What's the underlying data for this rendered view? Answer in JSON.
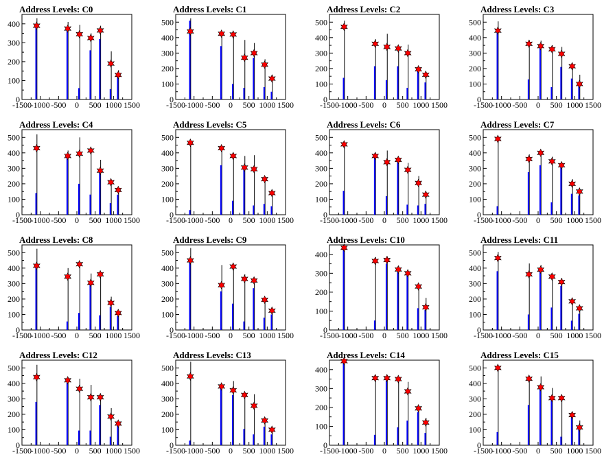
{
  "chart_data": [
    {
      "type": "histogram",
      "title": "Address Levels: C0",
      "xlim": [
        -1500,
        1500
      ],
      "ylim": [
        0,
        450
      ],
      "yticks": [
        0,
        100,
        200,
        300,
        400
      ],
      "xticks": [
        -1500,
        -1000,
        -500,
        0,
        500,
        1000,
        1500
      ],
      "peak_x": [
        -1100,
        -250,
        70,
        380,
        640,
        930,
        1130
      ],
      "peak_y": [
        390,
        375,
        345,
        325,
        365,
        190,
        130
      ],
      "bar_black": [
        430,
        410,
        395,
        350,
        390,
        255,
        155
      ],
      "bar_blue": [
        400,
        370,
        60,
        260,
        320,
        55,
        125
      ]
    },
    {
      "type": "histogram",
      "title": "Address Levels: C1",
      "xlim": [
        -1500,
        1500
      ],
      "ylim": [
        0,
        550
      ],
      "yticks": [
        0,
        100,
        200,
        300,
        400,
        500
      ],
      "xticks": [
        -1500,
        -1000,
        -500,
        0,
        500,
        1000,
        1500
      ],
      "peak_x": [
        -1100,
        -250,
        70,
        380,
        640,
        930,
        1130
      ],
      "peak_y": [
        440,
        425,
        420,
        270,
        300,
        225,
        135
      ],
      "bar_black": [
        525,
        440,
        430,
        385,
        365,
        260,
        160
      ],
      "bar_blue": [
        510,
        345,
        100,
        75,
        270,
        80,
        50
      ]
    },
    {
      "type": "histogram",
      "title": "Address Levels: C2",
      "xlim": [
        -1500,
        1500
      ],
      "ylim": [
        0,
        550
      ],
      "yticks": [
        0,
        100,
        200,
        300,
        400,
        500
      ],
      "xticks": [
        -1500,
        -1000,
        -500,
        0,
        500,
        1000,
        1500
      ],
      "peak_x": [
        -1100,
        -250,
        70,
        380,
        640,
        930,
        1130
      ],
      "peak_y": [
        470,
        360,
        340,
        330,
        300,
        195,
        160
      ],
      "bar_black": [
        510,
        390,
        425,
        345,
        355,
        210,
        175
      ],
      "bar_blue": [
        140,
        215,
        125,
        215,
        75,
        190,
        110
      ]
    },
    {
      "type": "histogram",
      "title": "Address Levels: C3",
      "xlim": [
        -1500,
        1500
      ],
      "ylim": [
        0,
        550
      ],
      "yticks": [
        0,
        100,
        200,
        300,
        400,
        500
      ],
      "xticks": [
        -1500,
        -1000,
        -500,
        0,
        500,
        1000,
        1500
      ],
      "peak_x": [
        -1100,
        -250,
        70,
        380,
        640,
        930,
        1130
      ],
      "peak_y": [
        445,
        360,
        345,
        325,
        295,
        215,
        100
      ],
      "bar_black": [
        505,
        385,
        380,
        350,
        340,
        225,
        160
      ],
      "bar_blue": [
        440,
        130,
        345,
        80,
        210,
        135,
        95
      ]
    },
    {
      "type": "histogram",
      "title": "Address Levels: C4",
      "xlim": [
        -1500,
        1500
      ],
      "ylim": [
        0,
        550
      ],
      "yticks": [
        0,
        100,
        200,
        300,
        400,
        500
      ],
      "xticks": [
        -1500,
        -1000,
        -500,
        0,
        500,
        1000,
        1500
      ],
      "peak_x": [
        -1100,
        -250,
        70,
        380,
        640,
        930,
        1130
      ],
      "peak_y": [
        430,
        380,
        395,
        415,
        285,
        210,
        160
      ],
      "bar_black": [
        520,
        415,
        500,
        425,
        355,
        215,
        170
      ],
      "bar_blue": [
        140,
        370,
        200,
        130,
        290,
        75,
        130
      ]
    },
    {
      "type": "histogram",
      "title": "Address Levels: C5",
      "xlim": [
        -1500,
        1500
      ],
      "ylim": [
        0,
        550
      ],
      "yticks": [
        0,
        100,
        200,
        300,
        400,
        500
      ],
      "xticks": [
        -1500,
        -1000,
        -500,
        0,
        500,
        1000,
        1500
      ],
      "peak_x": [
        -1100,
        -250,
        70,
        380,
        640,
        930,
        1130
      ],
      "peak_y": [
        465,
        430,
        380,
        305,
        295,
        230,
        140
      ],
      "bar_black": [
        470,
        440,
        395,
        380,
        385,
        245,
        155
      ],
      "bar_blue": [
        30,
        320,
        90,
        310,
        60,
        70,
        55
      ]
    },
    {
      "type": "histogram",
      "title": "Address Levels: C6",
      "xlim": [
        -1500,
        1500
      ],
      "ylim": [
        0,
        550
      ],
      "yticks": [
        0,
        100,
        200,
        300,
        400,
        500
      ],
      "xticks": [
        -1500,
        -1000,
        -500,
        0,
        500,
        1000,
        1500
      ],
      "peak_x": [
        -1100,
        -250,
        70,
        380,
        640,
        930,
        1130
      ],
      "peak_y": [
        455,
        380,
        340,
        355,
        290,
        205,
        130
      ],
      "bar_black": [
        470,
        400,
        415,
        375,
        335,
        250,
        145
      ],
      "bar_blue": [
        155,
        370,
        120,
        340,
        65,
        60,
        70
      ]
    },
    {
      "type": "histogram",
      "title": "Address Levels: C7",
      "xlim": [
        -1500,
        1500
      ],
      "ylim": [
        0,
        550
      ],
      "yticks": [
        0,
        100,
        200,
        300,
        400,
        500
      ],
      "xticks": [
        -1500,
        -1000,
        -500,
        0,
        500,
        1000,
        1500
      ],
      "peak_x": [
        -1100,
        -250,
        70,
        380,
        640,
        930,
        1130
      ],
      "peak_y": [
        490,
        360,
        400,
        345,
        320,
        200,
        150
      ],
      "bar_black": [
        500,
        390,
        420,
        375,
        325,
        230,
        165
      ],
      "bar_blue": [
        55,
        275,
        320,
        80,
        310,
        135,
        125
      ]
    },
    {
      "type": "histogram",
      "title": "Address Levels: C8",
      "xlim": [
        -1500,
        1500
      ],
      "ylim": [
        0,
        550
      ],
      "yticks": [
        0,
        100,
        200,
        300,
        400,
        500
      ],
      "xticks": [
        -1500,
        -1000,
        -500,
        0,
        500,
        1000,
        1500
      ],
      "peak_x": [
        -1100,
        -250,
        70,
        380,
        640,
        930,
        1130
      ],
      "peak_y": [
        415,
        345,
        425,
        305,
        360,
        175,
        110
      ],
      "bar_black": [
        525,
        400,
        440,
        365,
        370,
        215,
        120
      ],
      "bar_blue": [
        405,
        55,
        110,
        305,
        95,
        150,
        90
      ]
    },
    {
      "type": "histogram",
      "title": "Address Levels: C9",
      "xlim": [
        -1500,
        1500
      ],
      "ylim": [
        0,
        550
      ],
      "yticks": [
        0,
        100,
        200,
        300,
        400,
        500
      ],
      "xticks": [
        -1500,
        -1000,
        -500,
        0,
        500,
        1000,
        1500
      ],
      "peak_x": [
        -1100,
        -250,
        70,
        380,
        640,
        930,
        1130
      ],
      "peak_y": [
        450,
        290,
        410,
        330,
        320,
        195,
        125
      ],
      "bar_black": [
        530,
        420,
        420,
        360,
        325,
        200,
        140
      ],
      "bar_blue": [
        445,
        250,
        170,
        55,
        270,
        80,
        100
      ]
    },
    {
      "type": "histogram",
      "title": "Address Levels: C10",
      "xlim": [
        -1500,
        1500
      ],
      "ylim": [
        0,
        450
      ],
      "yticks": [
        0,
        100,
        200,
        300,
        400
      ],
      "xticks": [
        -1500,
        -1000,
        -500,
        0,
        500,
        1000,
        1500
      ],
      "peak_x": [
        -1100,
        -250,
        70,
        380,
        640,
        930,
        1130
      ],
      "peak_y": [
        435,
        365,
        370,
        320,
        300,
        230,
        120
      ],
      "bar_black": [
        450,
        385,
        390,
        340,
        310,
        240,
        170
      ],
      "bar_blue": [
        430,
        50,
        350,
        305,
        295,
        115,
        105
      ]
    },
    {
      "type": "histogram",
      "title": "Address Levels: C11",
      "xlim": [
        -1500,
        1500
      ],
      "ylim": [
        0,
        550
      ],
      "yticks": [
        0,
        100,
        200,
        300,
        400,
        500
      ],
      "xticks": [
        -1500,
        -1000,
        -500,
        0,
        500,
        1000,
        1500
      ],
      "peak_x": [
        -1100,
        -250,
        70,
        380,
        640,
        930,
        1130
      ],
      "peak_y": [
        465,
        360,
        390,
        345,
        310,
        185,
        140
      ],
      "bar_black": [
        505,
        430,
        420,
        350,
        335,
        200,
        150
      ],
      "bar_blue": [
        380,
        100,
        380,
        145,
        285,
        60,
        105
      ]
    },
    {
      "type": "histogram",
      "title": "Address Levels: C12",
      "xlim": [
        -1500,
        1500
      ],
      "ylim": [
        0,
        550
      ],
      "yticks": [
        0,
        100,
        200,
        300,
        400,
        500
      ],
      "xticks": [
        -1500,
        -1000,
        -500,
        0,
        500,
        1000,
        1500
      ],
      "peak_x": [
        -1100,
        -250,
        70,
        380,
        640,
        930,
        1130
      ],
      "peak_y": [
        440,
        420,
        365,
        310,
        310,
        185,
        140
      ],
      "bar_black": [
        520,
        425,
        430,
        390,
        335,
        240,
        150
      ],
      "bar_blue": [
        280,
        405,
        95,
        95,
        260,
        55,
        130
      ]
    },
    {
      "type": "histogram",
      "title": "Address Levels: C13",
      "xlim": [
        -1500,
        1500
      ],
      "ylim": [
        0,
        550
      ],
      "yticks": [
        0,
        100,
        200,
        300,
        400,
        500
      ],
      "xticks": [
        -1500,
        -1000,
        -500,
        0,
        500,
        1000,
        1500
      ],
      "peak_x": [
        -1100,
        -250,
        70,
        380,
        640,
        930,
        1130
      ],
      "peak_y": [
        445,
        380,
        355,
        325,
        255,
        160,
        100
      ],
      "bar_black": [
        540,
        385,
        415,
        345,
        330,
        180,
        115
      ],
      "bar_blue": [
        30,
        370,
        325,
        105,
        70,
        120,
        70
      ]
    },
    {
      "type": "histogram",
      "title": "Address Levels: C14",
      "xlim": [
        -1500,
        1500
      ],
      "ylim": [
        0,
        450
      ],
      "yticks": [
        0,
        100,
        200,
        300,
        400
      ],
      "xticks": [
        -1500,
        -1000,
        -500,
        0,
        500,
        1000,
        1500
      ],
      "peak_x": [
        -1100,
        -250,
        70,
        380,
        640,
        930,
        1130
      ],
      "peak_y": [
        445,
        355,
        355,
        350,
        285,
        195,
        120
      ],
      "bar_black": [
        450,
        370,
        370,
        355,
        335,
        200,
        145
      ],
      "bar_blue": [
        435,
        55,
        345,
        95,
        130,
        175,
        65
      ]
    },
    {
      "type": "histogram",
      "title": "Address Levels: C15",
      "xlim": [
        -1500,
        1500
      ],
      "ylim": [
        0,
        550
      ],
      "yticks": [
        0,
        100,
        200,
        300,
        400,
        500
      ],
      "xticks": [
        -1500,
        -1000,
        -500,
        0,
        500,
        1000,
        1500
      ],
      "peak_x": [
        -1100,
        -250,
        70,
        380,
        640,
        930,
        1130
      ],
      "peak_y": [
        500,
        430,
        375,
        305,
        305,
        195,
        115
      ],
      "bar_black": [
        500,
        440,
        445,
        370,
        315,
        215,
        160
      ],
      "bar_blue": [
        85,
        260,
        380,
        305,
        55,
        185,
        110
      ]
    }
  ],
  "colors": {
    "marker_fill": "#ff0000",
    "marker_stroke": "#000000",
    "bar_main": "#0000ff",
    "bar_outline": "#000000"
  }
}
